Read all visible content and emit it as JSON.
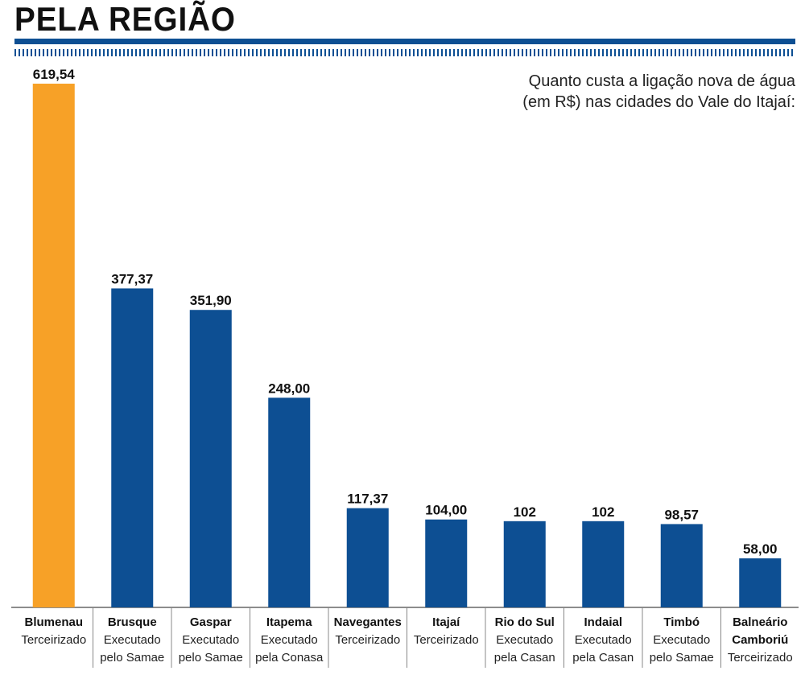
{
  "header": {
    "title": "PELA REGIÃO",
    "subtitle": "Quanto custa a ligação nova de água\n(em R$) nas cidades do Vale do Itajaí:"
  },
  "colors": {
    "highlight": "#f7a127",
    "bar": "#0d4f93",
    "rule": "#0d4f93"
  },
  "chart_data": {
    "type": "bar",
    "title": "",
    "xlabel": "",
    "ylabel": "",
    "ylim": [
      0,
      619.54
    ],
    "grid": false,
    "categories": [
      "Blumenau",
      "Brusque",
      "Gaspar",
      "Itapema",
      "Navegantes",
      "Itajaí",
      "Rio do Sul",
      "Indaial",
      "Timbó",
      "Balneário Camboriú"
    ],
    "category_lines": [
      [
        "Blumenau"
      ],
      [
        "Brusque"
      ],
      [
        "Gaspar"
      ],
      [
        "Itapema"
      ],
      [
        "Navegantes"
      ],
      [
        "Itajaí"
      ],
      [
        "Rio do Sul"
      ],
      [
        "Indaial"
      ],
      [
        "Timbó"
      ],
      [
        "Balneário",
        "Camboriú"
      ]
    ],
    "operators": [
      [
        "Terceirizado"
      ],
      [
        "Executado",
        "pelo Samae"
      ],
      [
        "Executado",
        "pelo Samae"
      ],
      [
        "Executado",
        "pela Conasa"
      ],
      [
        "Terceirizado"
      ],
      [
        "Terceirizado"
      ],
      [
        "Executado",
        "pela Casan"
      ],
      [
        "Executado",
        "pela Casan"
      ],
      [
        "Executado",
        "pelo Samae"
      ],
      [
        "Terceirizado"
      ]
    ],
    "values": [
      619.54,
      377.37,
      351.9,
      248.0,
      117.37,
      104.0,
      102,
      102,
      98.57,
      58.0
    ],
    "labels": [
      "619,54",
      "377,37",
      "351,90",
      "248,00",
      "117,37",
      "104,00",
      "102",
      "102",
      "98,57",
      "58,00"
    ],
    "highlight_index": 0
  }
}
